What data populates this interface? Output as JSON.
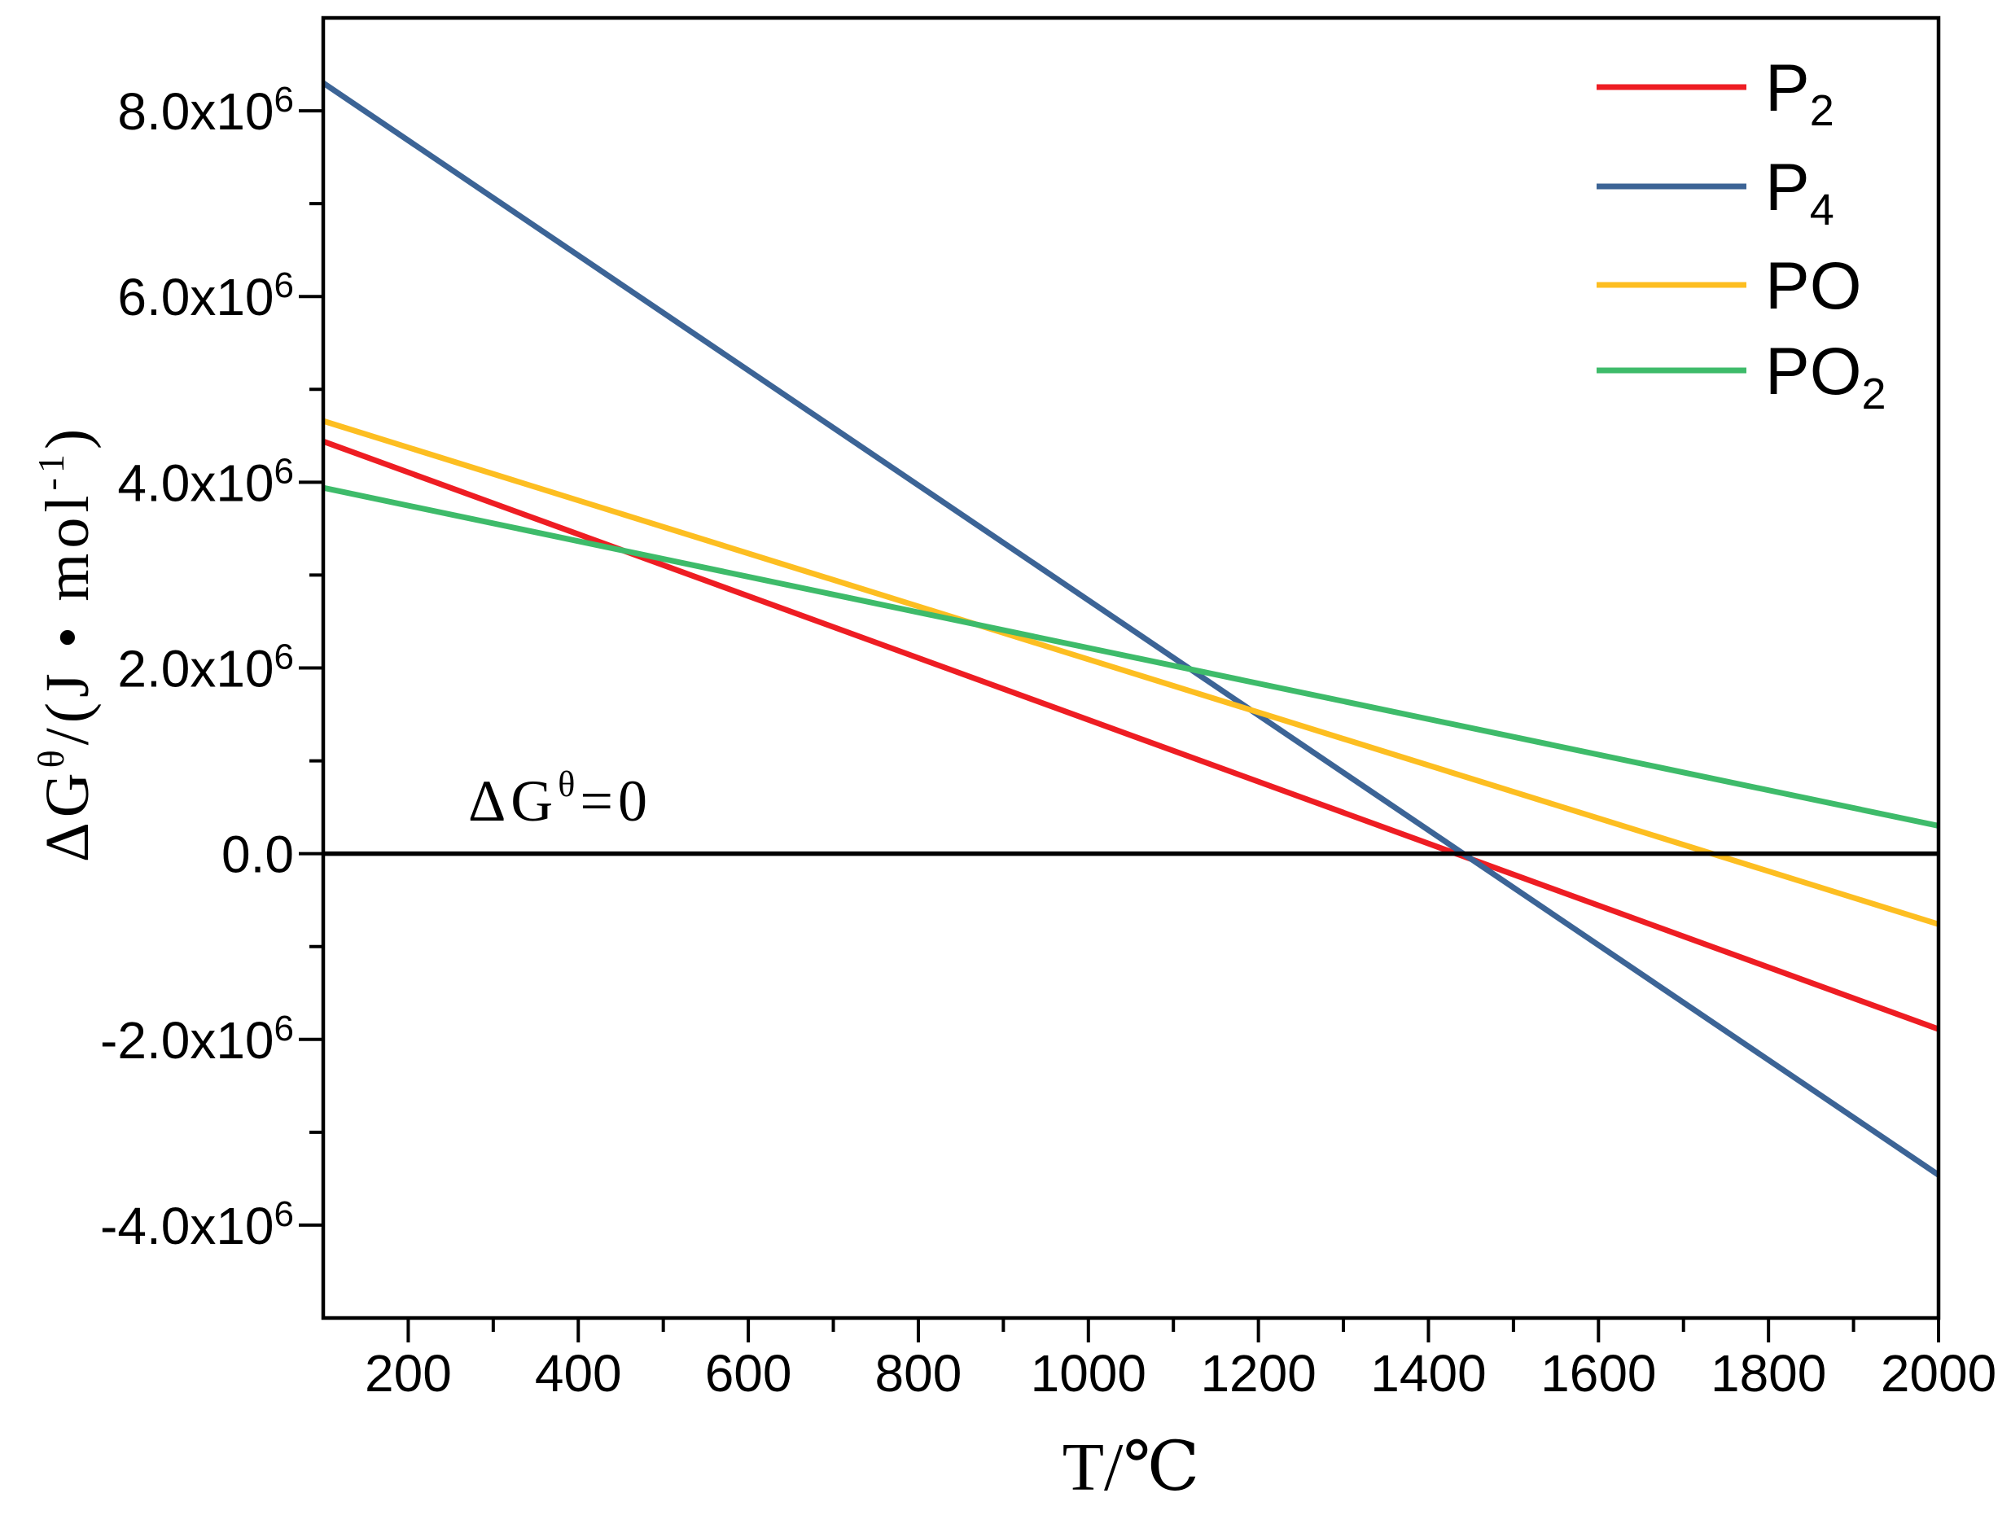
{
  "chart_data": {
    "type": "line",
    "xlabel": "T/℃",
    "ylabel": {
      "main": "ΔG",
      "sup": "θ",
      "rest": "/(J • mol",
      "sup2": "-1",
      "end": ")"
    },
    "xlim": [
      100,
      2000
    ],
    "ylim": [
      -5000000,
      9000000
    ],
    "xticks": [
      200,
      400,
      600,
      800,
      1000,
      1200,
      1400,
      1600,
      1800,
      2000
    ],
    "xtick_labels": [
      "200",
      "400",
      "600",
      "800",
      "1000",
      "1200",
      "1400",
      "1600",
      "1800",
      "2000"
    ],
    "xticks_minor": [
      300,
      500,
      700,
      900,
      1100,
      1300,
      1500,
      1700,
      1900
    ],
    "yticks": [
      -4000000,
      -2000000,
      0,
      2000000,
      4000000,
      6000000,
      8000000
    ],
    "ytick_labels": [
      {
        "base": "-4.0x10",
        "exp": "6"
      },
      {
        "base": "-2.0x10",
        "exp": "6"
      },
      {
        "base": "0.0",
        "exp": ""
      },
      {
        "base": "2.0x10",
        "exp": "6"
      },
      {
        "base": "4.0x10",
        "exp": "6"
      },
      {
        "base": "6.0x10",
        "exp": "6"
      },
      {
        "base": "8.0x10",
        "exp": "6"
      }
    ],
    "yticks_minor": [
      -3000000,
      -1000000,
      1000000,
      3000000,
      5000000,
      7000000
    ],
    "grid": false,
    "legend_position": "top-right",
    "series": [
      {
        "label": "P",
        "label_sub": "2",
        "color": "#EE1D23",
        "x": [
          100,
          2000
        ],
        "y": [
          4440000,
          -1890000
        ]
      },
      {
        "label": "P",
        "label_sub": "4",
        "color": "#3C6496",
        "x": [
          100,
          2000
        ],
        "y": [
          8300000,
          -3460000
        ]
      },
      {
        "label": "PO",
        "label_sub": "",
        "color": "#FDBE21",
        "x": [
          100,
          2000
        ],
        "y": [
          4660000,
          -760000
        ]
      },
      {
        "label": "PO",
        "label_sub": "2",
        "color": "#3EBB6A",
        "x": [
          100,
          2000
        ],
        "y": [
          3940000,
          300000
        ]
      }
    ],
    "reference_line": {
      "y": 0,
      "color": "#000000",
      "label_main": "ΔG",
      "label_sup": "θ",
      "label_end": "=0"
    }
  }
}
